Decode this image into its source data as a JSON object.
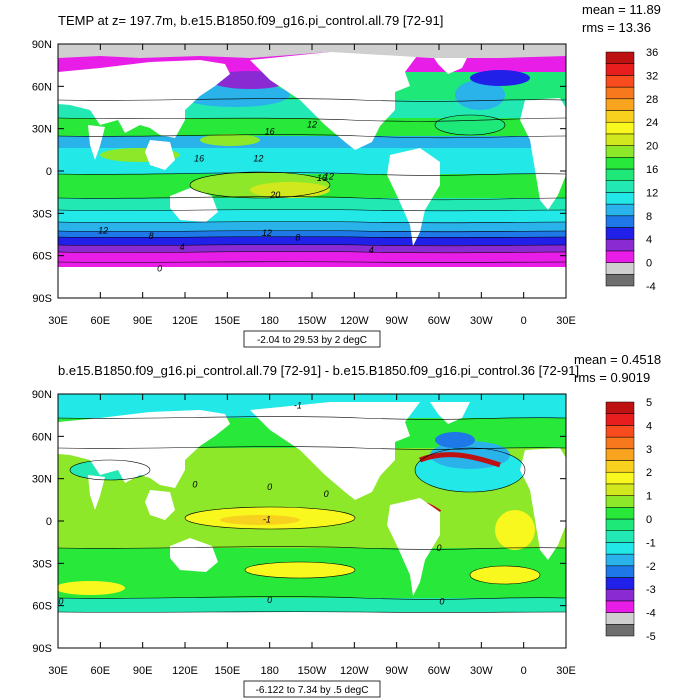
{
  "chart_data": [
    {
      "type": "heatmap",
      "title": "TEMP at z= 197.7m, b.e15.B1850.f09_g16.pi_control.all.79 [72-91]",
      "stats": {
        "mean": "mean = 11.89",
        "rms": "rms = 13.36"
      },
      "contour_info": "-2.04 to 29.53 by 2 degC",
      "x_ticks": [
        "30E",
        "60E",
        "90E",
        "120E",
        "150E",
        "180",
        "150W",
        "120W",
        "90W",
        "60W",
        "30W",
        "0",
        "30E"
      ],
      "y_ticks": [
        "90N",
        "60N",
        "30N",
        "0",
        "30S",
        "60S",
        "90S"
      ],
      "ylim": [
        -90,
        90
      ],
      "colorbar": {
        "labels": [
          "36",
          "32",
          "28",
          "24",
          "20",
          "16",
          "12",
          "8",
          "4",
          "0",
          "-4"
        ],
        "colors": [
          "#6e6e6e",
          "#cfcfcf",
          "#e81ee8",
          "#8a2ad2",
          "#2020e8",
          "#1e78e8",
          "#2ab2ea",
          "#22e8e8",
          "#22e8b4",
          "#1ee878",
          "#28e83a",
          "#8ce828",
          "#d2e81e",
          "#f8f81e",
          "#f8d01e",
          "#f8a41e",
          "#f8781e",
          "#f84c1e",
          "#e81e1e",
          "#be1212"
        ]
      },
      "contour_labels": [
        {
          "text": "16",
          "lon": 180,
          "lat": 28
        },
        {
          "text": "12",
          "lon": 210,
          "lat": 33
        },
        {
          "text": "16",
          "lon": 130,
          "lat": 9
        },
        {
          "text": "12",
          "lon": 172,
          "lat": 9
        },
        {
          "text": "16",
          "lon": 217,
          "lat": -5
        },
        {
          "text": "12",
          "lon": 222,
          "lat": -4
        },
        {
          "text": "20",
          "lon": 184,
          "lat": -17
        },
        {
          "text": "12",
          "lon": 62,
          "lat": -42
        },
        {
          "text": "8",
          "lon": 96,
          "lat": -46
        },
        {
          "text": "12",
          "lon": 178,
          "lat": -44
        },
        {
          "text": "8",
          "lon": 200,
          "lat": -47
        },
        {
          "text": "4",
          "lon": 118,
          "lat": -54
        },
        {
          "text": "4",
          "lon": 252,
          "lat": -56
        },
        {
          "text": "0",
          "lon": 102,
          "lat": -69
        }
      ]
    },
    {
      "type": "heatmap",
      "title": "b.e15.B1850.f09_g16.pi_control.all.79 [72-91] - b.e15.B1850.f09_g16.pi_control.36 [72-91]",
      "stats": {
        "mean": "mean = 0.4518",
        "rms": "rms = 0.9019"
      },
      "contour_info": "-6.122 to 7.34 by .5 degC",
      "x_ticks": [
        "30E",
        "60E",
        "90E",
        "120E",
        "150E",
        "180",
        "150W",
        "120W",
        "90W",
        "60W",
        "30W",
        "0",
        "30E"
      ],
      "y_ticks": [
        "90N",
        "60N",
        "30N",
        "0",
        "30S",
        "60S",
        "90S"
      ],
      "ylim": [
        -90,
        90
      ],
      "colorbar": {
        "labels": [
          "5",
          "4",
          "3",
          "2",
          "1",
          "0",
          "-1",
          "-2",
          "-3",
          "-4",
          "-5"
        ],
        "colors": [
          "#6e6e6e",
          "#cfcfcf",
          "#e81ee8",
          "#8a2ad2",
          "#2020e8",
          "#1e78e8",
          "#2ab2ea",
          "#22e8e8",
          "#22e8b4",
          "#1ee878",
          "#28e83a",
          "#8ce828",
          "#d2e81e",
          "#f8f81e",
          "#f8d01e",
          "#f8a41e",
          "#f8781e",
          "#f84c1e",
          "#e81e1e",
          "#be1212"
        ]
      },
      "contour_labels": [
        {
          "text": "-1",
          "lon": 200,
          "lat": 82
        },
        {
          "text": "0",
          "lon": 127,
          "lat": 26
        },
        {
          "text": "0",
          "lon": 180,
          "lat": 24
        },
        {
          "text": "0",
          "lon": 220,
          "lat": 19
        },
        {
          "text": "-1",
          "lon": 178,
          "lat": 1
        },
        {
          "text": "0",
          "lon": 300,
          "lat": -19
        },
        {
          "text": "0",
          "lon": 32,
          "lat": -57
        },
        {
          "text": "0",
          "lon": 180,
          "lat": -56
        },
        {
          "text": "0",
          "lon": 302,
          "lat": -57
        }
      ]
    }
  ]
}
